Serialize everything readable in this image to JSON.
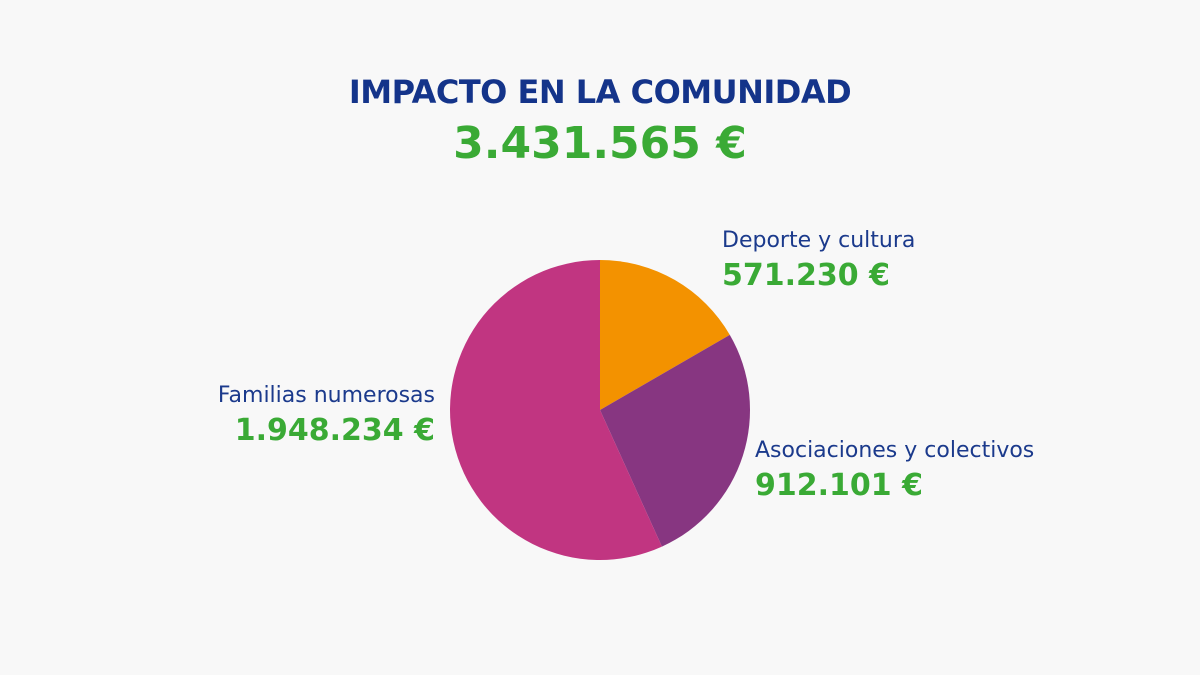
{
  "header": {
    "title": "IMPACTO EN LA COMUNIDAD",
    "total": "3.431.565 €"
  },
  "chart_data": {
    "type": "pie",
    "title": "IMPACTO EN LA COMUNIDAD",
    "subtitle": "3.431.565 €",
    "unit": "€",
    "categories": [
      "Deporte y cultura",
      "Asociaciones y colectivos",
      "Familias numerosas"
    ],
    "values": [
      571230,
      912101,
      1948234
    ],
    "value_labels": [
      "571.230 €",
      "912.101 €",
      "1.948.234 €"
    ],
    "colors": [
      "#f39200",
      "#873681",
      "#c13581"
    ],
    "start": "12 o'clock",
    "direction": "clockwise",
    "legend": "none"
  },
  "labels": {
    "deporte": {
      "name": "Deporte y cultura",
      "value": "571.230 €"
    },
    "asociaciones": {
      "name": "Asociaciones y colectivos",
      "value": "912.101 €"
    },
    "familias": {
      "name": "Familias numerosas",
      "value": "1.948.234 €"
    }
  }
}
